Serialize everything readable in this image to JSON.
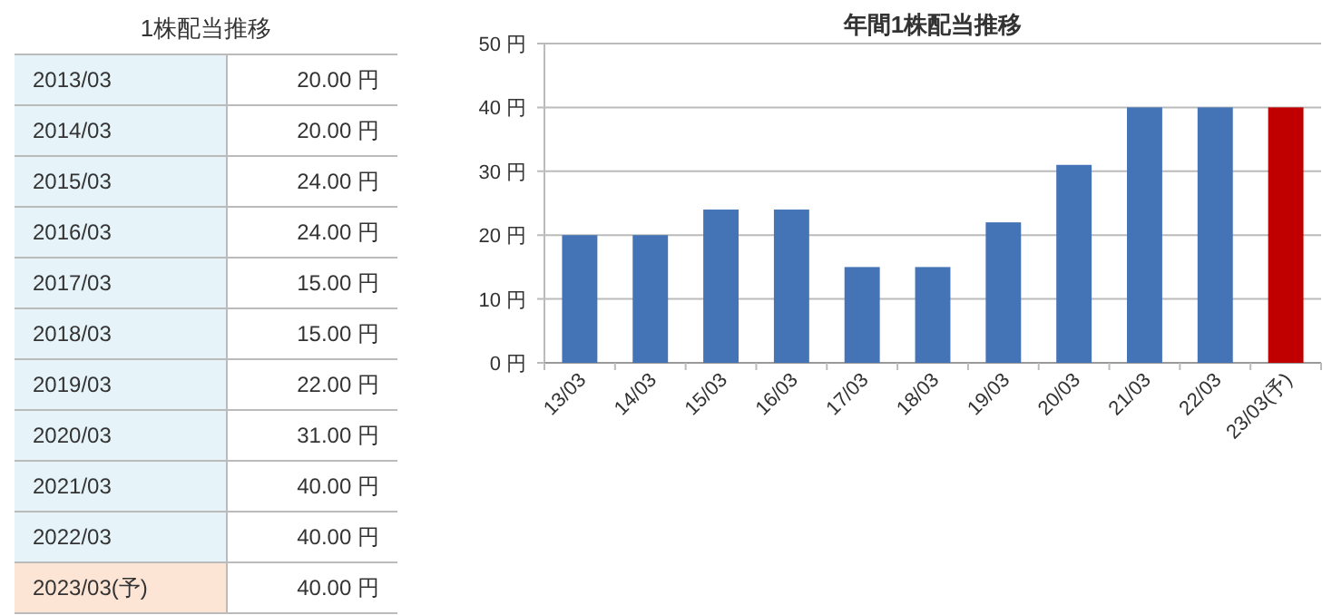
{
  "chart_data": [
    {
      "type": "other",
      "title": "1株配当推移",
      "annotations": [
        "2013/03",
        "20.00 円",
        "2014/03",
        "20.00 円",
        "2015/03",
        "24.00 円",
        "2016/03",
        "24.00 円",
        "2017/03",
        "15.00 円",
        "2018/03",
        "15.00 円",
        "2019/03",
        "22.00 円",
        "2020/03",
        "31.00 円",
        "2021/03",
        "40.00 円",
        "2022/03",
        "40.00 円",
        "2023/03(予)",
        "40.00 円"
      ]
    },
    {
      "type": "bar",
      "title": "年間1株配当推移",
      "categories": [
        "13/03",
        "14/03",
        "15/03",
        "16/03",
        "17/03",
        "18/03",
        "19/03",
        "20/03",
        "21/03",
        "22/03",
        "23/03(予)"
      ],
      "values": [
        20,
        20,
        24,
        24,
        15,
        15,
        22,
        31,
        40,
        40,
        40
      ],
      "colors": [
        "#4574b6",
        "#4574b6",
        "#4574b6",
        "#4574b6",
        "#4574b6",
        "#4574b6",
        "#4574b6",
        "#4574b6",
        "#4574b6",
        "#4574b6",
        "#c00000"
      ],
      "ylim": [
        0,
        50
      ],
      "yticks": [
        {
          "value": 0,
          "label": "0 円"
        },
        {
          "value": 10,
          "label": "10 円"
        },
        {
          "value": 20,
          "label": "20 円"
        },
        {
          "value": 30,
          "label": "30 円"
        },
        {
          "value": 40,
          "label": "40 円"
        },
        {
          "value": 50,
          "label": "50 円"
        }
      ],
      "grid": "y"
    }
  ]
}
